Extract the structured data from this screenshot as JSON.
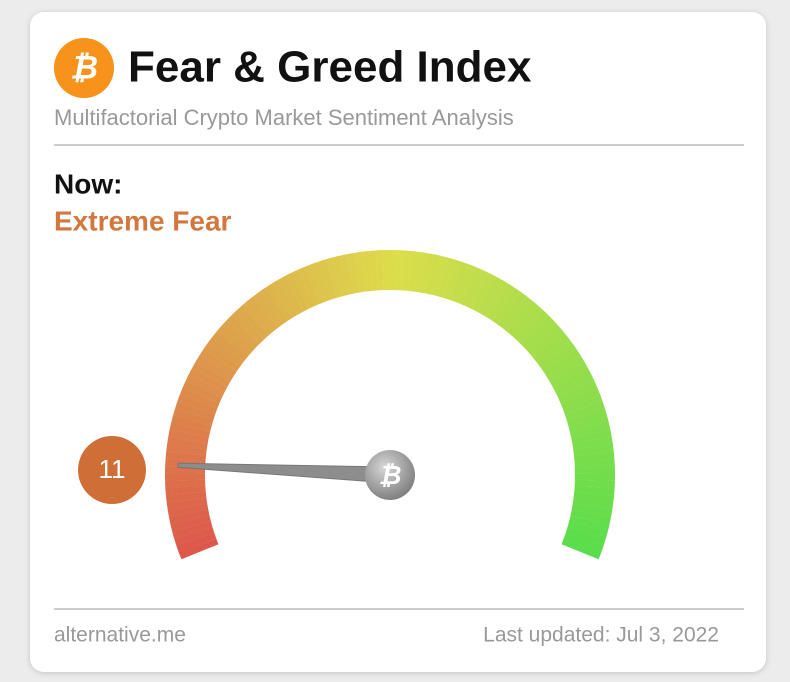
{
  "chart_data": {
    "type": "gauge",
    "title": "Fear & Greed Index",
    "subtitle": "Multifactorial Crypto Market Sentiment Analysis",
    "now_label": "Now:",
    "classification": "Extreme Fear",
    "value": 11,
    "ylim": [
      0,
      100
    ],
    "source": "alternative.me",
    "updated": "Last updated: Jul 3, 2022",
    "color": "#cf6f37"
  }
}
